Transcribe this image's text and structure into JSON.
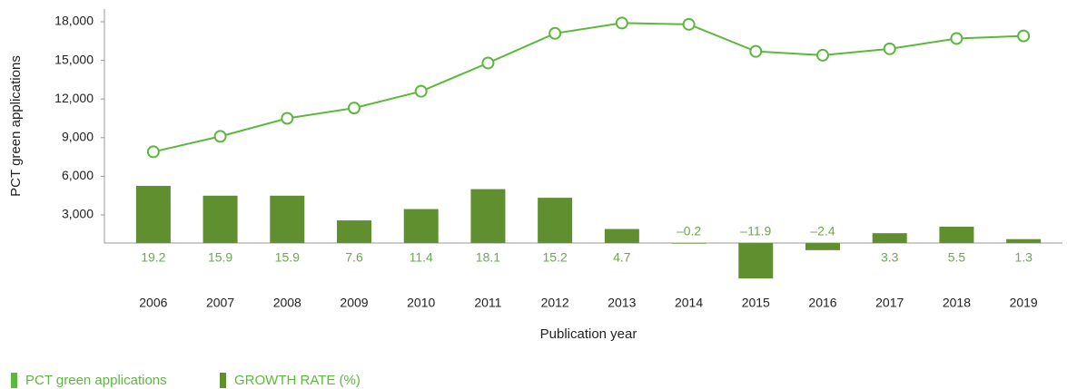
{
  "chart_data": {
    "type": "bar-line",
    "categories": [
      "2006",
      "2007",
      "2008",
      "2009",
      "2010",
      "2011",
      "2012",
      "2013",
      "2014",
      "2015",
      "2016",
      "2017",
      "2018",
      "2019"
    ],
    "x_label": "Publication year",
    "y_label": "PCT green applications",
    "ylim": [
      817,
      18986
    ],
    "yticks": [
      {
        "value": 3000,
        "label": "3,000"
      },
      {
        "value": 6000,
        "label": "6,000"
      },
      {
        "value": 9000,
        "label": "9,000"
      },
      {
        "value": 12000,
        "label": "12,000"
      },
      {
        "value": 15000,
        "label": "15,000"
      },
      {
        "value": 18000,
        "label": "18,000"
      }
    ],
    "y2lim": [
      0,
      78.6
    ],
    "series": [
      {
        "name": "PCT green applications",
        "type": "line",
        "color": "#5cb83c",
        "values": [
          7900,
          9100,
          10500,
          11300,
          12600,
          14800,
          17100,
          17900,
          17800,
          15700,
          15400,
          15900,
          16700,
          16900
        ]
      },
      {
        "name": "GROWTH RATE (%)",
        "type": "bar",
        "axis": "y2",
        "color": "#5f8f2e",
        "values": [
          19.2,
          15.9,
          15.9,
          7.6,
          11.4,
          18.1,
          15.2,
          4.7,
          -0.2,
          -11.9,
          -2.4,
          3.3,
          5.5,
          1.3
        ],
        "value_labels": [
          "19.2",
          "15.9",
          "15.9",
          "7.6",
          "11.4",
          "18.1",
          "15.2",
          "4.7",
          "–0.2",
          "–11.9",
          "–2.4",
          "3.3",
          "5.5",
          "1.3"
        ]
      }
    ],
    "grid": false
  }
}
